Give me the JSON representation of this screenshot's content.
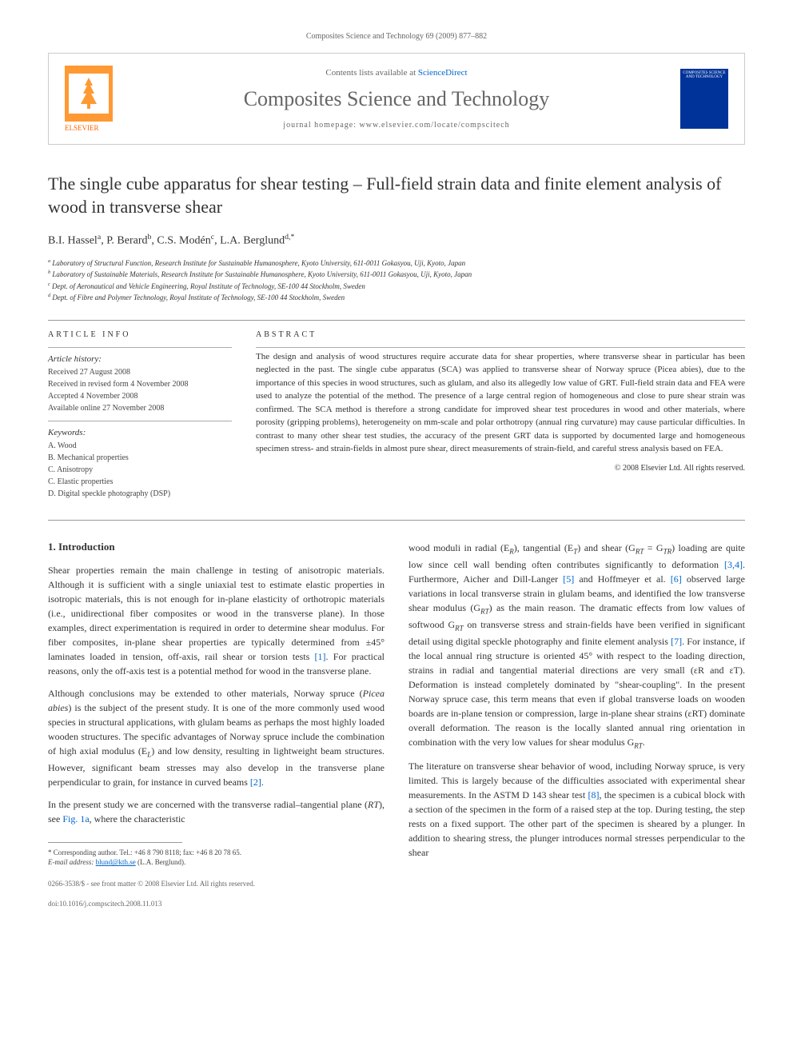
{
  "header": {
    "citation": "Composites Science and Technology 69 (2009) 877–882"
  },
  "journal_box": {
    "publisher_name": "ELSEVIER",
    "contents_text": "Contents lists available at",
    "contents_link": "ScienceDirect",
    "journal_title": "Composites Science and Technology",
    "homepage_label": "journal homepage: www.elsevier.com/locate/compscitech",
    "cover_text": "COMPOSITES SCIENCE AND TECHNOLOGY"
  },
  "article": {
    "title": "The single cube apparatus for shear testing – Full-field strain data and finite element analysis of wood in transverse shear",
    "authors_html": "B.I. Hassel<sup>a</sup>, P. Berard<sup>b</sup>, C.S. Modén<sup>c</sup>, L.A. Berglund<sup>d,*</sup>",
    "affiliations": [
      "a Laboratory of Structural Function, Research Institute for Sustainable Humanosphere, Kyoto University, 611-0011 Gokasyou, Uji, Kyoto, Japan",
      "b Laboratory of Sustainable Materials, Research Institute for Sustainable Humanosphere, Kyoto University, 611-0011 Gokasyou, Uji, Kyoto, Japan",
      "c Dept. of Aeronautical and Vehicle Engineering, Royal Institute of Technology, SE-100 44 Stockholm, Sweden",
      "d Dept. of Fibre and Polymer Technology, Royal Institute of Technology, SE-100 44 Stockholm, Sweden"
    ]
  },
  "info": {
    "heading": "ARTICLE INFO",
    "history_label": "Article history:",
    "history": [
      "Received 27 August 2008",
      "Received in revised form 4 November 2008",
      "Accepted 4 November 2008",
      "Available online 27 November 2008"
    ],
    "keywords_label": "Keywords:",
    "keywords": [
      "A. Wood",
      "B. Mechanical properties",
      "C. Anisotropy",
      "C. Elastic properties",
      "D. Digital speckle photography (DSP)"
    ]
  },
  "abstract": {
    "heading": "ABSTRACT",
    "text": "The design and analysis of wood structures require accurate data for shear properties, where transverse shear in particular has been neglected in the past. The single cube apparatus (SCA) was applied to transverse shear of Norway spruce (Picea abies), due to the importance of this species in wood structures, such as glulam, and also its allegedly low value of GRT. Full-field strain data and FEA were used to analyze the potential of the method. The presence of a large central region of homogeneous and close to pure shear strain was confirmed. The SCA method is therefore a strong candidate for improved shear test procedures in wood and other materials, where porosity (gripping problems), heterogeneity on mm-scale and polar orthotropy (annual ring curvature) may cause particular difficulties. In contrast to many other shear test studies, the accuracy of the present GRT data is supported by documented large and homogeneous specimen stress- and strain-fields in almost pure shear, direct measurements of strain-field, and careful stress analysis based on FEA.",
    "copyright": "© 2008 Elsevier Ltd. All rights reserved."
  },
  "body": {
    "section_heading": "1. Introduction",
    "col1_p1": "Shear properties remain the main challenge in testing of anisotropic materials. Although it is sufficient with a single uniaxial test to estimate elastic properties in isotropic materials, this is not enough for in-plane elasticity of orthotropic materials (i.e., unidirectional fiber composites or wood in the transverse plane). In those examples, direct experimentation is required in order to determine shear modulus. For fiber composites, in-plane shear properties are typically determined from ±45° laminates loaded in tension, off-axis, rail shear or torsion tests [1]. For practical reasons, only the off-axis test is a potential method for wood in the transverse plane.",
    "col1_p2": "Although conclusions may be extended to other materials, Norway spruce (Picea abies) is the subject of the present study. It is one of the more commonly used wood species in structural applications, with glulam beams as perhaps the most highly loaded wooden structures. The specific advantages of Norway spruce include the combination of high axial modulus (EL) and low density, resulting in lightweight beam structures. However, significant beam stresses may also develop in the transverse plane perpendicular to grain, for instance in curved beams [2].",
    "col1_p3": "In the present study we are concerned with the transverse radial–tangential plane (RT), see Fig. 1a, where the characteristic",
    "col2_p1": "wood moduli in radial (ER), tangential (ET) and shear (GRT = GTR) loading are quite low since cell wall bending often contributes significantly to deformation [3,4]. Furthermore, Aicher and Dill-Langer [5] and Hoffmeyer et al. [6] observed large variations in local transverse strain in glulam beams, and identified the low transverse shear modulus (GRT) as the main reason. The dramatic effects from low values of softwood GRT on transverse stress and strain-fields have been verified in significant detail using digital speckle photography and finite element analysis [7]. For instance, if the local annual ring structure is oriented 45° with respect to the loading direction, strains in radial and tangential material directions are very small (εR and εT). Deformation is instead completely dominated by \"shear-coupling\". In the present Norway spruce case, this term means that even if global transverse loads on wooden boards are in-plane tension or compression, large in-plane shear strains (εRT) dominate overall deformation. The reason is the locally slanted annual ring orientation in combination with the very low values for shear modulus GRT.",
    "col2_p2": "The literature on transverse shear behavior of wood, including Norway spruce, is very limited. This is largely because of the difficulties associated with experimental shear measurements. In the ASTM D 143 shear test [8], the specimen is a cubical block with a section of the specimen in the form of a raised step at the top. During testing, the step rests on a fixed support. The other part of the specimen is sheared by a plunger. In addition to shearing stress, the plunger introduces normal stresses perpendicular to the shear"
  },
  "footnote": {
    "corresponding": "* Corresponding author. Tel.: +46 8 790 8118; fax: +46 8 20 78 65.",
    "email_label": "E-mail address:",
    "email": "blund@kth.se",
    "email_name": "(L.A. Berglund)."
  },
  "footer": {
    "issn": "0266-3538/$ - see front matter © 2008 Elsevier Ltd. All rights reserved.",
    "doi": "doi:10.1016/j.compscitech.2008.11.013"
  },
  "colors": {
    "link_color": "#0066cc",
    "text_color": "#333333",
    "grey_text": "#666666",
    "elsevier_orange": "#ff6600",
    "cover_blue": "#003399",
    "border_grey": "#cccccc"
  }
}
